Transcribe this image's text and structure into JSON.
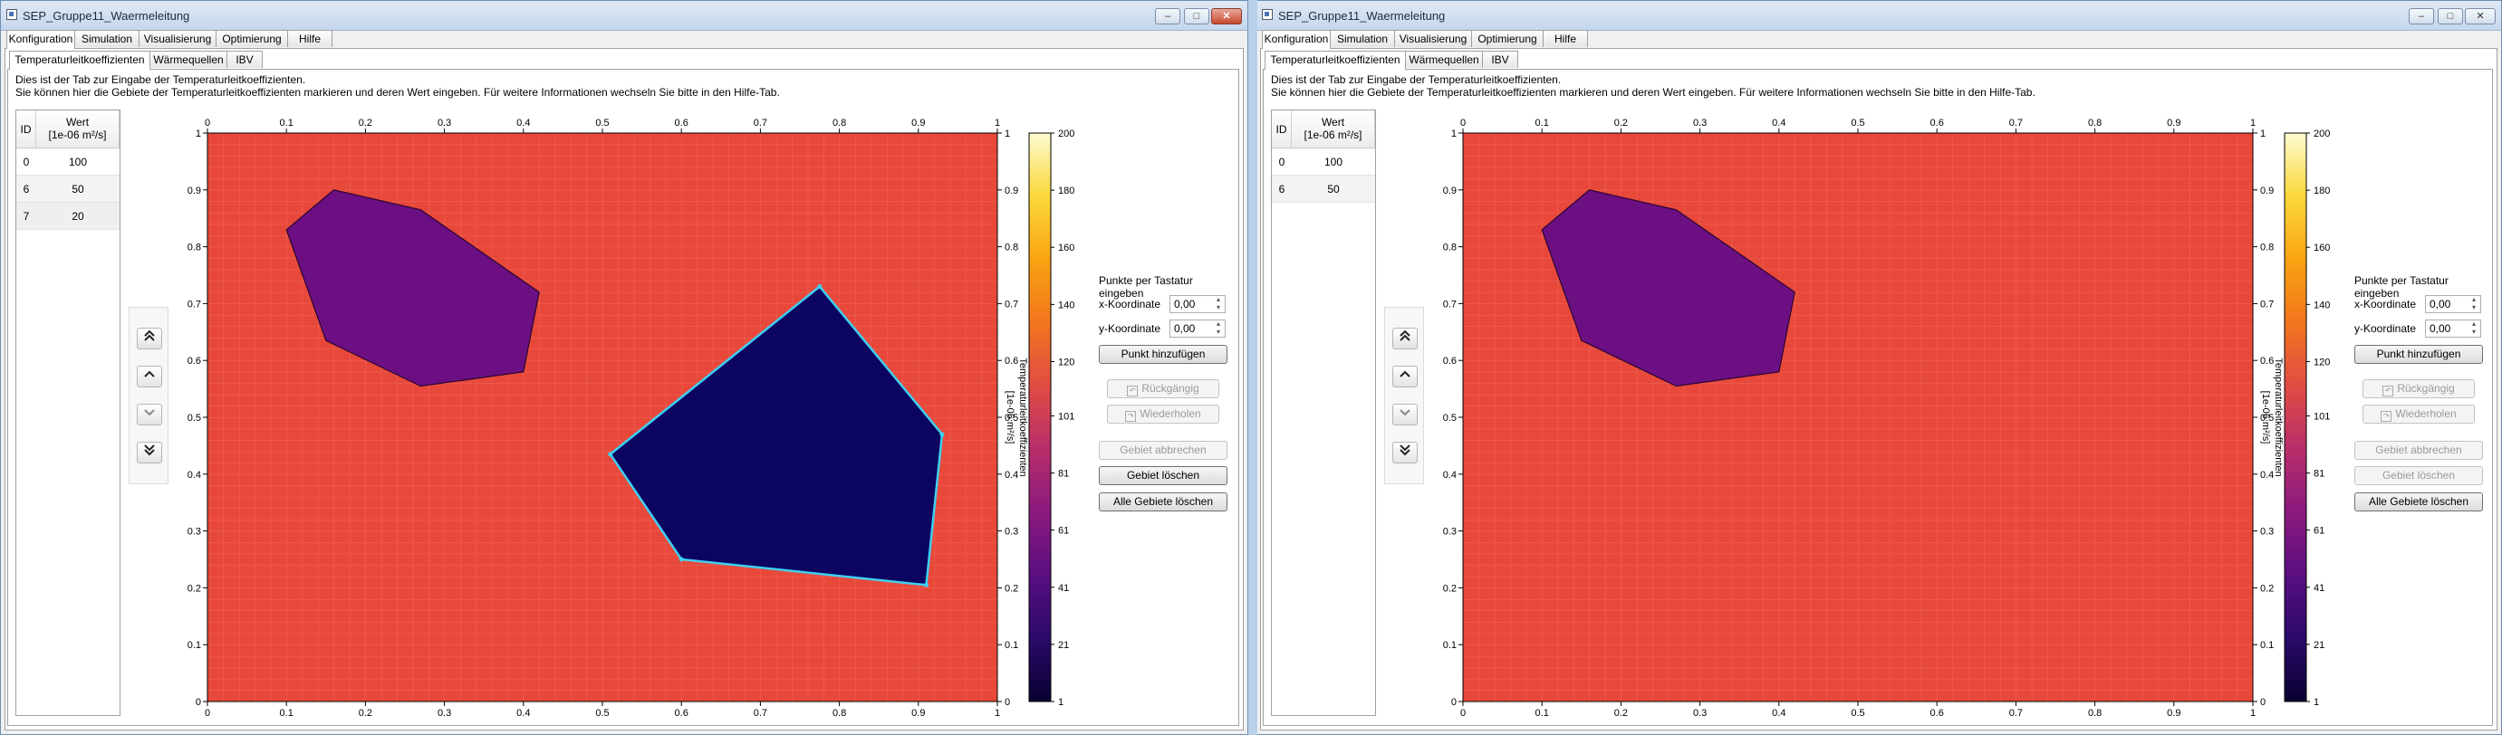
{
  "windows": [
    {
      "title": "SEP_Gruppe11_Waermeleitung",
      "main_tabs": [
        "Konfiguration",
        "Simulation",
        "Visualisierung",
        "Optimierung",
        "Hilfe"
      ],
      "sub_tabs": [
        "Temperaturleitkoeffizienten",
        "Wärmequellen",
        "IBV"
      ],
      "description_line1": "Dies ist der Tab zur Eingabe der Temperaturleitkoeffizienten.",
      "description_line2": "Sie können hier die Gebiete der Temperaturleitkoeffizienten markieren und deren Wert eingeben. Für weitere Informationen wechseln Sie bitte in den Hilfe-Tab.",
      "table": {
        "col_id": "ID",
        "col_wert_line1": "Wert",
        "col_wert_line2": "[1e-06 m²/s]",
        "rows": [
          {
            "id": "0",
            "wert": "100"
          },
          {
            "id": "6",
            "wert": "50"
          },
          {
            "id": "7",
            "wert": "20"
          }
        ]
      },
      "panel": {
        "keyboard_title": "Punkte per Tastatur eingeben",
        "x_label": "x-Koordinate",
        "y_label": "y-Koordinate",
        "x_value": "0,00",
        "y_value": "0,00",
        "add_point": "Punkt hinzufügen",
        "undo": "Rückgängig",
        "redo": "Wiederholen",
        "cancel_area": "Gebiet abbrechen",
        "delete_area": "Gebiet löschen",
        "delete_all": "Alle Gebiete löschen",
        "delete_area_enabled": true
      },
      "colorbar": {
        "label_line1": "Temperaturleitkoeffizienten",
        "label_line2": "[1e-06 m²/s]",
        "ticks": [
          1,
          21,
          41,
          61,
          81,
          101,
          120,
          140,
          160,
          180,
          200
        ]
      },
      "chart_data": {
        "type": "heatmap",
        "xlim": [
          0,
          1
        ],
        "ylim": [
          0,
          1
        ],
        "ticks": [
          0,
          0.1,
          0.2,
          0.3,
          0.4,
          0.5,
          0.6,
          0.7,
          0.8,
          0.9,
          1
        ],
        "tick_labels": [
          "0",
          "0.1",
          "0.2",
          "0.3",
          "0.4",
          "0.5",
          "0.6",
          "0.7",
          "0.8",
          "0.9",
          "1"
        ],
        "grid": true,
        "background_value": 100,
        "regions": [
          {
            "id": "6",
            "value": 50,
            "color": "#6c0f82",
            "points": [
              [
                0.1,
                0.83
              ],
              [
                0.16,
                0.9
              ],
              [
                0.27,
                0.865
              ],
              [
                0.42,
                0.72
              ],
              [
                0.4,
                0.58
              ],
              [
                0.27,
                0.555
              ],
              [
                0.15,
                0.635
              ]
            ],
            "selected": false
          },
          {
            "id": "7",
            "value": 20,
            "color": "#0b0561",
            "points": [
              [
                0.775,
                0.73
              ],
              [
                0.93,
                0.47
              ],
              [
                0.91,
                0.205
              ],
              [
                0.6,
                0.25
              ],
              [
                0.51,
                0.435
              ]
            ],
            "selected": true
          }
        ]
      }
    },
    {
      "title": "SEP_Gruppe11_Waermeleitung",
      "main_tabs": [
        "Konfiguration",
        "Simulation",
        "Visualisierung",
        "Optimierung",
        "Hilfe"
      ],
      "sub_tabs": [
        "Temperaturleitkoeffizienten",
        "Wärmequellen",
        "IBV"
      ],
      "description_line1": "Dies ist der Tab zur Eingabe der Temperaturleitkoeffizienten.",
      "description_line2": "Sie können hier die Gebiete der Temperaturleitkoeffizienten markieren und deren Wert eingeben. Für weitere Informationen wechseln Sie bitte in den Hilfe-Tab.",
      "table": {
        "col_id": "ID",
        "col_wert_line1": "Wert",
        "col_wert_line2": "[1e-06 m²/s]",
        "rows": [
          {
            "id": "0",
            "wert": "100"
          },
          {
            "id": "6",
            "wert": "50"
          }
        ]
      },
      "panel": {
        "keyboard_title": "Punkte per Tastatur eingeben",
        "x_label": "x-Koordinate",
        "y_label": "y-Koordinate",
        "x_value": "0,00",
        "y_value": "0,00",
        "add_point": "Punkt hinzufügen",
        "undo": "Rückgängig",
        "redo": "Wiederholen",
        "cancel_area": "Gebiet abbrechen",
        "delete_area": "Gebiet löschen",
        "delete_all": "Alle Gebiete löschen",
        "delete_area_enabled": false
      },
      "colorbar": {
        "label_line1": "Temperaturleitkoeffizienten",
        "label_line2": "[1e-06 m²/s]",
        "ticks": [
          1,
          21,
          41,
          61,
          81,
          101,
          120,
          140,
          160,
          180,
          200
        ]
      },
      "chart_data": {
        "type": "heatmap",
        "xlim": [
          0,
          1
        ],
        "ylim": [
          0,
          1
        ],
        "ticks": [
          0,
          0.1,
          0.2,
          0.3,
          0.4,
          0.5,
          0.6,
          0.7,
          0.8,
          0.9,
          1
        ],
        "tick_labels": [
          "0",
          "0.1",
          "0.2",
          "0.3",
          "0.4",
          "0.5",
          "0.6",
          "0.7",
          "0.8",
          "0.9",
          "1"
        ],
        "grid": true,
        "background_value": 100,
        "regions": [
          {
            "id": "6",
            "value": 50,
            "color": "#6c0f82",
            "points": [
              [
                0.1,
                0.83
              ],
              [
                0.16,
                0.9
              ],
              [
                0.27,
                0.865
              ],
              [
                0.42,
                0.72
              ],
              [
                0.4,
                0.58
              ],
              [
                0.27,
                0.555
              ],
              [
                0.15,
                0.635
              ]
            ],
            "selected": false
          }
        ]
      }
    }
  ],
  "colors": {
    "heat_background": "#e8483a",
    "selection_outline": "#3fd0f0",
    "colormap": [
      "#0a0030",
      "#2a0a6a",
      "#5a0e80",
      "#8a1a7e",
      "#b82e6a",
      "#e04c44",
      "#f2761e",
      "#f9a312",
      "#fbd83a",
      "#fdfbd0"
    ]
  }
}
